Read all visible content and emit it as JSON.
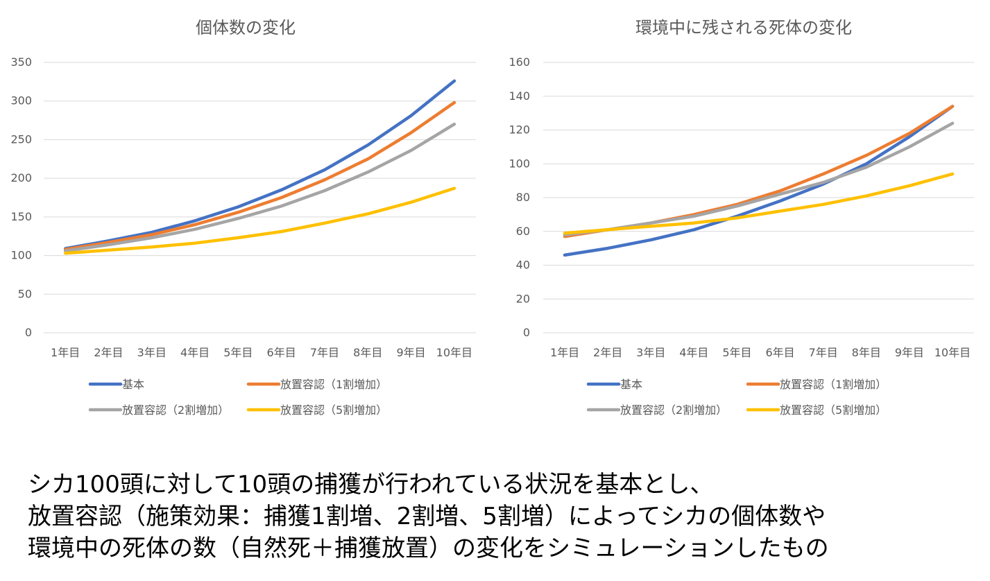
{
  "chart_data": [
    {
      "type": "line",
      "title": "個体数の変化",
      "categories": [
        "1年目",
        "2年目",
        "3年目",
        "4年目",
        "5年目",
        "6年目",
        "7年目",
        "8年目",
        "9年目",
        "10年目"
      ],
      "ylim": [
        0,
        350
      ],
      "yticks": [
        0,
        50,
        100,
        150,
        200,
        250,
        300,
        350
      ],
      "grid": true,
      "legend_position": "bottom",
      "series": [
        {
          "name": "基本",
          "color": "#4472C4",
          "values": [
            109,
            119,
            130,
            145,
            163,
            185,
            211,
            243,
            281,
            326
          ]
        },
        {
          "name": "放置容認（1割増加）",
          "color": "#ED7D31",
          "values": [
            108,
            117,
            127,
            140,
            156,
            175,
            198,
            225,
            259,
            298
          ]
        },
        {
          "name": "放置容認（2割増加）",
          "color": "#A5A5A5",
          "values": [
            106,
            114,
            123,
            134,
            148,
            164,
            184,
            208,
            236,
            270
          ]
        },
        {
          "name": "放置容認（5割増加）",
          "color": "#FFC000",
          "values": [
            103,
            107,
            111,
            116,
            123,
            131,
            142,
            154,
            169,
            187
          ]
        }
      ]
    },
    {
      "type": "line",
      "title": "環境中に残される死体の変化",
      "categories": [
        "1年目",
        "2年目",
        "3年目",
        "4年目",
        "5年目",
        "6年目",
        "7年目",
        "8年目",
        "9年目",
        "10年目"
      ],
      "ylim": [
        0,
        160
      ],
      "yticks": [
        0,
        20,
        40,
        60,
        80,
        100,
        120,
        140,
        160
      ],
      "grid": true,
      "legend_position": "bottom",
      "series": [
        {
          "name": "基本",
          "color": "#4472C4",
          "values": [
            46,
            50,
            55,
            61,
            69,
            78,
            88,
            100,
            116,
            134
          ]
        },
        {
          "name": "放置容認（1割増加）",
          "color": "#ED7D31",
          "values": [
            57,
            61,
            65,
            70,
            76,
            84,
            94,
            105,
            118,
            134
          ]
        },
        {
          "name": "放置容認（2割増加）",
          "color": "#A5A5A5",
          "values": [
            58,
            61,
            65,
            69,
            75,
            82,
            89,
            98,
            110,
            124
          ]
        },
        {
          "name": "放置容認（5割増加）",
          "color": "#FFC000",
          "values": [
            59,
            61,
            63,
            65,
            68,
            72,
            76,
            81,
            87,
            94
          ]
        }
      ]
    }
  ],
  "caption": {
    "lines": [
      "シカ100頭に対して10頭の捕獲が行われている状況を基本とし、",
      "放置容認（施策効果：捕獲1割増、2割増、5割増）によってシカの個体数や",
      "環境中の死体の数（自然死＋捕獲放置）の変化をシミュレーションしたもの"
    ]
  }
}
